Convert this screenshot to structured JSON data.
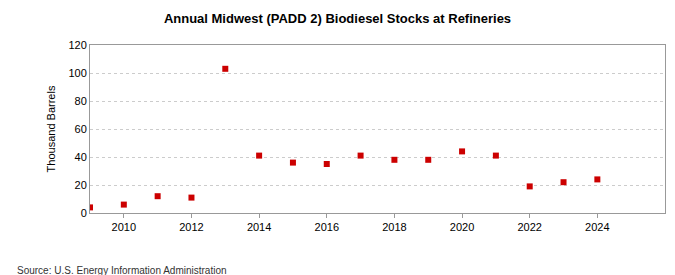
{
  "chart_data": {
    "type": "scatter",
    "title": "Annual Midwest (PADD 2) Biodiesel Stocks at Refineries",
    "y_label": "Thousand Barrels",
    "annotations": [
      "Source: U.S. Energy Information Administration"
    ],
    "x": [
      2009,
      2010,
      2011,
      2012,
      2013,
      2014,
      2015,
      2016,
      2017,
      2018,
      2019,
      2020,
      2021,
      2022,
      2023,
      2024
    ],
    "values": [
      4,
      6,
      12,
      11,
      103,
      41,
      36,
      35,
      41,
      38,
      38,
      44,
      41,
      19,
      22,
      24
    ],
    "color": "#cc0000",
    "marker": "square",
    "xlim": [
      2009,
      2026
    ],
    "xticks": [
      2010,
      2012,
      2014,
      2016,
      2018,
      2020,
      2022,
      2024
    ],
    "ylim": [
      0,
      120
    ],
    "yticks": [
      0,
      20,
      40,
      60,
      80,
      100,
      120
    ],
    "grid": true
  }
}
